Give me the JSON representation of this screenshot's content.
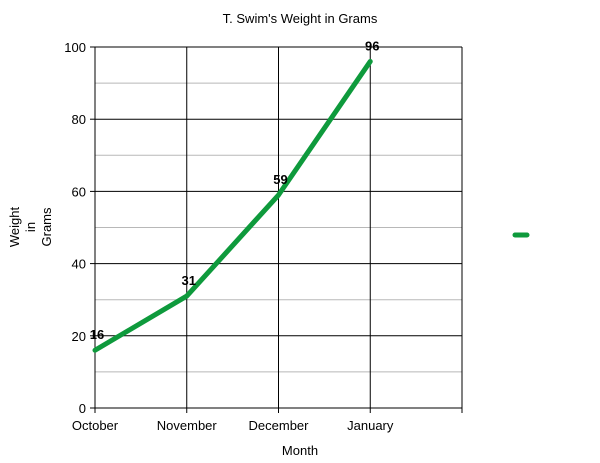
{
  "chart_data": {
    "type": "line",
    "title": "T. Swim's Weight in Grams",
    "xlabel": "Month",
    "ylabel_lines": [
      "Weight",
      "in",
      "Grams"
    ],
    "categories": [
      "October",
      "November",
      "December",
      "January"
    ],
    "series": [
      {
        "values": [
          16,
          31,
          59,
          96
        ],
        "color": "#0e9a3c"
      }
    ],
    "data_labels": [
      "16",
      "31",
      "59",
      "96"
    ],
    "ylim": [
      0,
      100
    ],
    "yticks": [
      0,
      20,
      40,
      60,
      80,
      100
    ],
    "ytick_labels": [
      "0",
      "20",
      "40",
      "60",
      "80",
      "100"
    ],
    "x_slots": 4,
    "grid": true,
    "legend": "right"
  }
}
